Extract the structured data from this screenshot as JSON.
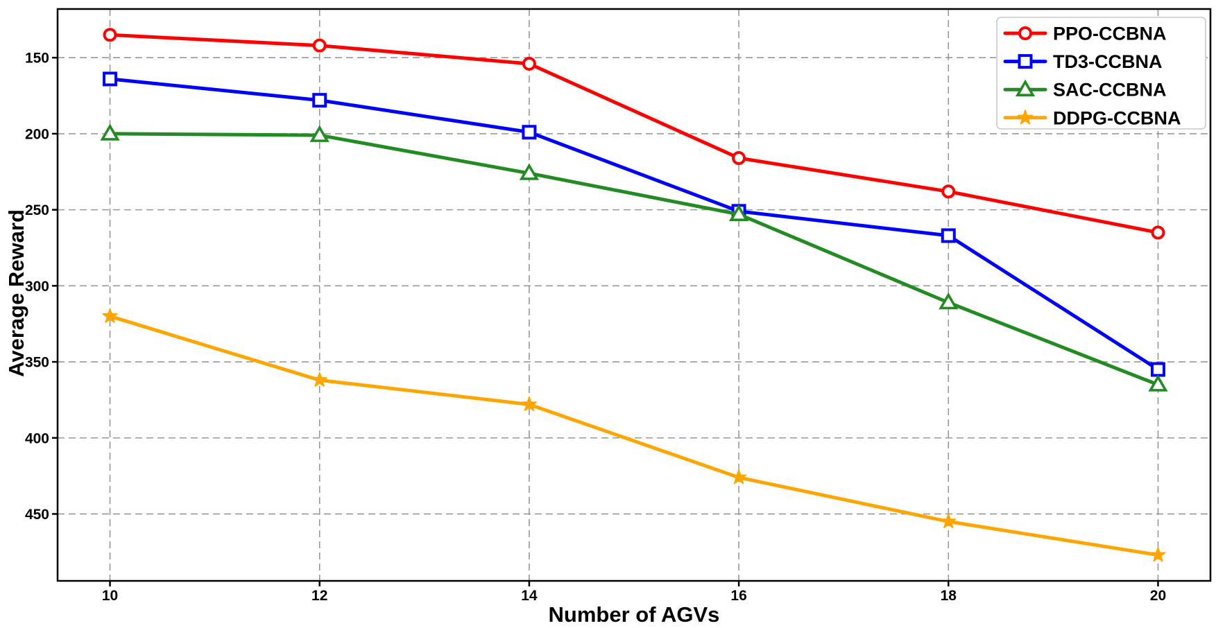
{
  "chart_data": {
    "type": "line",
    "title": "",
    "xlabel": "Number of AGVs",
    "ylabel": "Average Reward",
    "x": [
      10,
      12,
      14,
      16,
      18,
      20
    ],
    "x_tick_labels": [
      "10",
      "12",
      "14",
      "16",
      "18",
      "20"
    ],
    "y_tick_labels": [
      "150",
      "200",
      "250",
      "300",
      "350",
      "400",
      "450"
    ],
    "y_ticks": [
      150,
      200,
      250,
      300,
      350,
      400,
      450
    ],
    "y_axis_inverted": true,
    "xlim": [
      9.5,
      20.5
    ],
    "ylim_top_to_bottom": [
      118,
      494
    ],
    "grid": "dashed-both-axes",
    "legend_position": "upper-right",
    "series": [
      {
        "name": "PPO-CCBNA",
        "color": "#ff0000",
        "marker": "circle",
        "values": [
          135,
          142,
          154,
          216,
          238,
          265
        ]
      },
      {
        "name": "TD3-CCBNA",
        "color": "#0000ff",
        "marker": "square",
        "values": [
          164,
          178,
          199,
          251,
          267,
          355
        ]
      },
      {
        "name": "SAC-CCBNA",
        "color": "#228b22",
        "marker": "triangle",
        "values": [
          200,
          201,
          226,
          253,
          311,
          365
        ]
      },
      {
        "name": "DDPG-CCBNA",
        "color": "#ffa500",
        "marker": "star",
        "values": [
          320,
          362,
          378,
          426,
          455,
          477
        ]
      }
    ]
  },
  "colors": {
    "gridline": "#989898",
    "spine": "#000000",
    "legend_border": "#cfcfcf",
    "legend_background": "#ffffff",
    "text": "#000000",
    "background": "#ffffff"
  }
}
